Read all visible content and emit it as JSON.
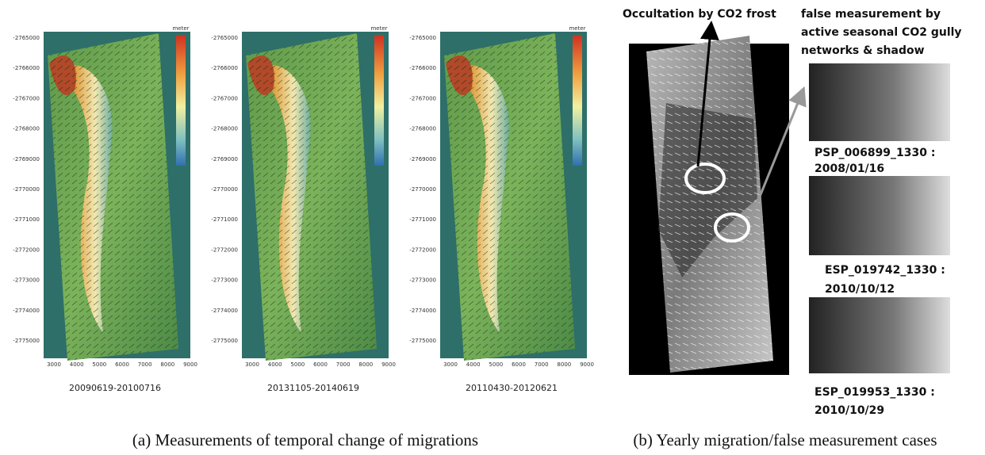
{
  "panel_a": {
    "axes": {
      "unit": "meter",
      "yticks": [
        -2765000,
        -2766000,
        -2767000,
        -2768000,
        -2769000,
        -2770000,
        -2771000,
        -2772000,
        -2773000,
        -2774000,
        -2775000
      ],
      "xticks": [
        3000,
        4000,
        5000,
        6000,
        7000,
        8000,
        9000
      ]
    },
    "maps": [
      {
        "caption": "20090619-20100716"
      },
      {
        "caption": "20131105-20140619"
      },
      {
        "caption": "20110430-20120621"
      }
    ],
    "caption": "(a) Measurements of temporal change of migrations"
  },
  "panel_b": {
    "annotation_occultation": "Occultation by CO2 frost",
    "annotation_false": [
      "false measurement by",
      "active seasonal CO2 gully",
      "networks & shadow"
    ],
    "thumbnails": [
      {
        "id": "PSP_006899_1330 :",
        "date": "2008/01/16"
      },
      {
        "id": "ESP_019742_1330 :",
        "date": "2010/10/12"
      },
      {
        "id": "ESP_019953_1330 :",
        "date": "2010/10/29"
      }
    ],
    "caption": "(b) Yearly migration/false measurement cases"
  }
}
